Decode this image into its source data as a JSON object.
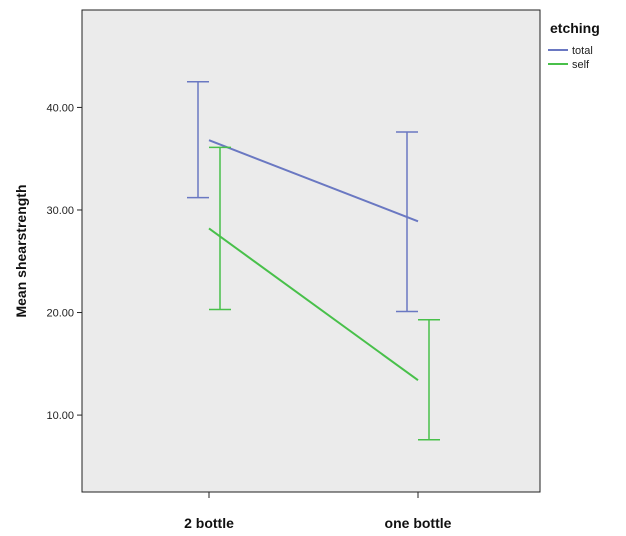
{
  "chart_data": {
    "type": "line",
    "categories": [
      "2 bottle",
      "one bottle"
    ],
    "xlabel": "",
    "ylabel": "Mean shearstrength",
    "ylim": [
      2.5,
      49.5
    ],
    "yticks": [
      10.0,
      20.0,
      30.0,
      40.0
    ],
    "ytick_labels": [
      "10.00",
      "20.00",
      "30.00",
      "40.00"
    ],
    "grid": false,
    "legend": {
      "title": "etching",
      "position": "top-right",
      "entries": [
        "total",
        "self"
      ]
    },
    "series": [
      {
        "name": "total",
        "color": "#6a78c2",
        "values": [
          36.8,
          28.9
        ],
        "ci_low": [
          31.2,
          20.1
        ],
        "ci_high": [
          42.5,
          37.6
        ]
      },
      {
        "name": "self",
        "color": "#48c04a",
        "values": [
          28.2,
          13.4
        ],
        "ci_low": [
          20.3,
          7.6
        ],
        "ci_high": [
          36.1,
          19.3
        ]
      }
    ],
    "plot_background": "#ebebeb"
  }
}
